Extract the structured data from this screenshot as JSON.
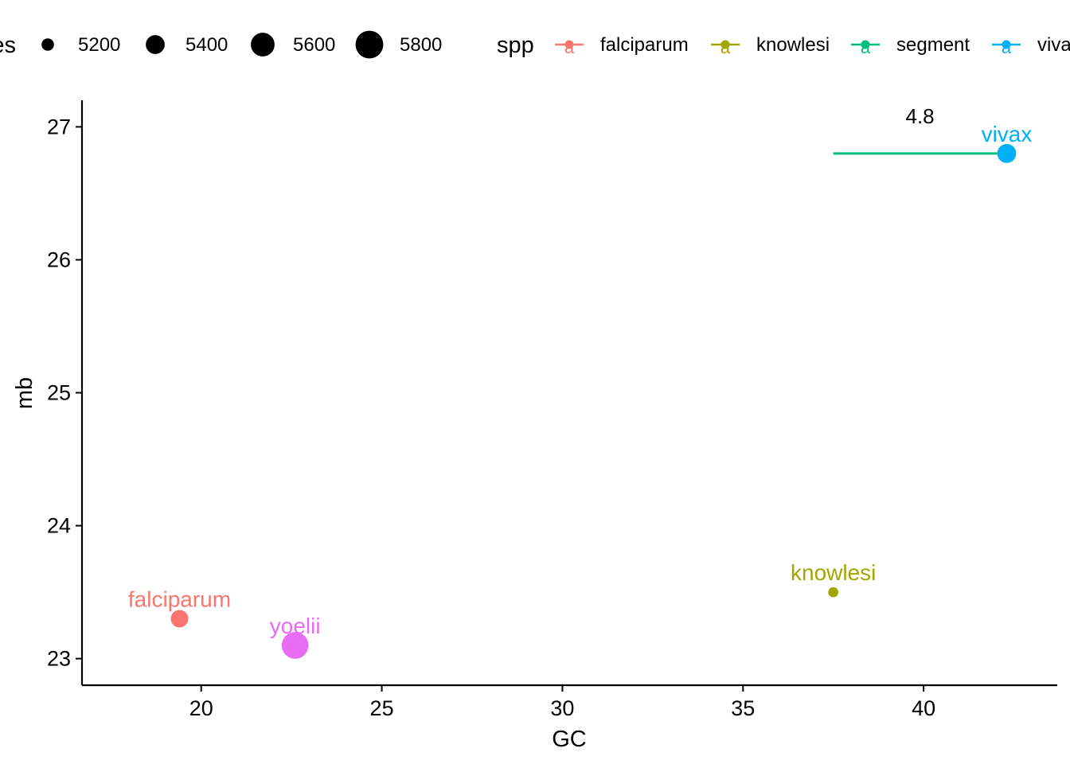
{
  "chart_data": {
    "type": "scatter",
    "xlabel": "GC",
    "ylabel": "mb",
    "xlim": [
      16.7,
      43.7
    ],
    "ylim": [
      22.8,
      27.2
    ],
    "x_ticks": [
      20,
      25,
      30,
      35,
      40
    ],
    "y_ticks": [
      23,
      24,
      25,
      26,
      27
    ],
    "grid": false,
    "size_legend": {
      "title_visible": "es",
      "range": [
        5100,
        5850
      ],
      "entries": [
        {
          "label": "5200",
          "value": 5200
        },
        {
          "label": "5400",
          "value": 5400
        },
        {
          "label": "5600",
          "value": 5600
        },
        {
          "label": "5800",
          "value": 5800
        }
      ]
    },
    "color_legend": {
      "title": "spp",
      "key_glyph": "a",
      "entries": [
        {
          "label": "falciparum",
          "color": "#F8766D"
        },
        {
          "label": "knowlesi",
          "color": "#A3A500"
        },
        {
          "label": "segment",
          "color": "#00BF7D"
        },
        {
          "label": "viva",
          "color": "#00B0F6"
        }
      ]
    },
    "points": [
      {
        "label": "falciparum",
        "x": 19.4,
        "y": 23.3,
        "size": 5350,
        "color": "#F8766D"
      },
      {
        "label": "yoelii",
        "x": 22.6,
        "y": 23.1,
        "size": 5750,
        "color": "#E76BF3"
      },
      {
        "label": "knowlesi",
        "x": 37.5,
        "y": 23.5,
        "size": 5150,
        "color": "#A3A500"
      },
      {
        "label": "vivax",
        "x": 42.3,
        "y": 26.8,
        "size": 5400,
        "color": "#00B0F6"
      }
    ],
    "segment": {
      "x0": 37.5,
      "x1": 42.3,
      "y": 26.8,
      "color": "#00BF7D",
      "label": "4.8",
      "label_x": 39.9,
      "label_y": 27.08
    }
  }
}
